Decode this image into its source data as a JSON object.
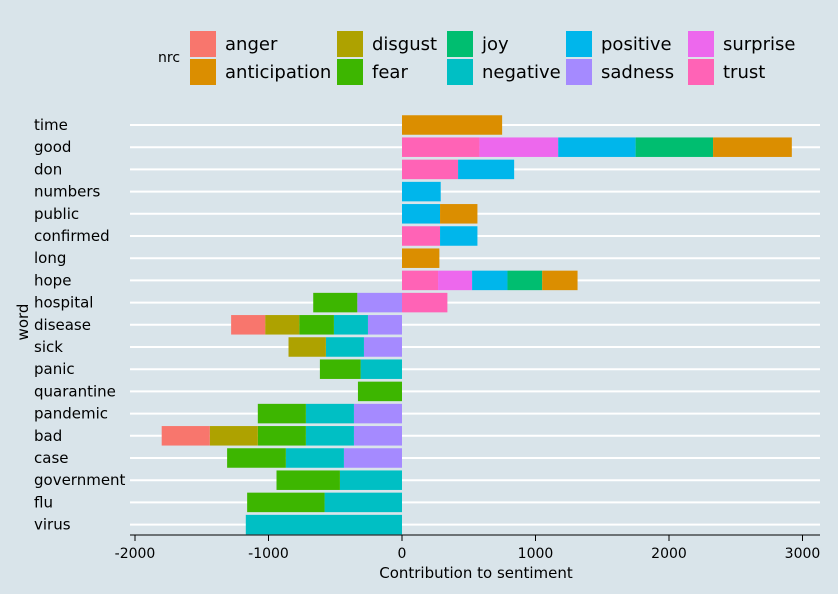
{
  "chart_data": {
    "type": "bar",
    "orientation": "horizontal",
    "stacked": true,
    "xlabel": "Contribution to sentiment",
    "ylabel": "word",
    "xlim": [
      -2000,
      3150
    ],
    "x_ticks": [
      -2000,
      -1000,
      0,
      1000,
      2000,
      3000
    ],
    "grid": "major horizontal lines",
    "legend_title": "nrc",
    "legend_position": "top",
    "colors": {
      "anger": "#F8766D",
      "anticipation": "#DB8E00",
      "disgust": "#AEA200",
      "fear": "#3DB600",
      "joy": "#00BE70",
      "negative": "#00BFC4",
      "positive": "#00B6EB",
      "sadness": "#A58AFF",
      "surprise": "#ED68ED",
      "trust": "#FF63B6"
    },
    "legend": [
      [
        "anger",
        "anticipation"
      ],
      [
        "disgust",
        "fear"
      ],
      [
        "joy",
        "negative"
      ],
      [
        "positive",
        "sadness"
      ],
      [
        "surprise",
        "trust"
      ]
    ],
    "categories": [
      "time",
      "good",
      "don",
      "numbers",
      "public",
      "confirmed",
      "long",
      "hope",
      "hospital",
      "disease",
      "sick",
      "panic",
      "quarantine",
      "pandemic",
      "bad",
      "case",
      "government",
      "flu",
      "virus"
    ],
    "bars": {
      "time": [
        [
          "anticipation",
          750
        ]
      ],
      "good": [
        [
          "trust",
          580
        ],
        [
          "surprise",
          590
        ],
        [
          "positive",
          580
        ],
        [
          "joy",
          580
        ],
        [
          "anticipation",
          590
        ]
      ],
      "don": [
        [
          "trust",
          420
        ],
        [
          "positive",
          420
        ]
      ],
      "numbers": [
        [
          "positive",
          290
        ]
      ],
      "public": [
        [
          "positive",
          285
        ],
        [
          "anticipation",
          280
        ]
      ],
      "confirmed": [
        [
          "trust",
          285
        ],
        [
          "positive",
          280
        ]
      ],
      "long": [
        [
          "anticipation",
          280
        ]
      ],
      "hope": [
        [
          "trust",
          270
        ],
        [
          "surprise",
          255
        ],
        [
          "positive",
          265
        ],
        [
          "joy",
          260
        ],
        [
          "anticipation",
          265
        ]
      ],
      "hospital": [
        [
          "trust",
          340
        ],
        [
          "sadness",
          -335
        ],
        [
          "fear",
          -330
        ]
      ],
      "disease": [
        [
          "sadness",
          -255
        ],
        [
          "negative",
          -255
        ],
        [
          "fear",
          -260
        ],
        [
          "disgust",
          -255
        ],
        [
          "anger",
          -255
        ]
      ],
      "sick": [
        [
          "sadness",
          -285
        ],
        [
          "negative",
          -285
        ],
        [
          "disgust",
          -280
        ]
      ],
      "panic": [
        [
          "negative",
          -310
        ],
        [
          "fear",
          -305
        ]
      ],
      "quarantine": [
        [
          "fear",
          -330
        ]
      ],
      "pandemic": [
        [
          "sadness",
          -360
        ],
        [
          "negative",
          -360
        ],
        [
          "fear",
          -360
        ]
      ],
      "bad": [
        [
          "sadness",
          -360
        ],
        [
          "negative",
          -360
        ],
        [
          "fear",
          -360
        ],
        [
          "disgust",
          -360
        ],
        [
          "anger",
          -360
        ]
      ],
      "case": [
        [
          "sadness",
          -435
        ],
        [
          "negative",
          -435
        ],
        [
          "fear",
          -440
        ]
      ],
      "government": [
        [
          "negative",
          -465
        ],
        [
          "fear",
          -475
        ]
      ],
      "flu": [
        [
          "negative",
          -580
        ],
        [
          "fear",
          -580
        ]
      ],
      "virus": [
        [
          "negative",
          -1170
        ]
      ]
    }
  }
}
